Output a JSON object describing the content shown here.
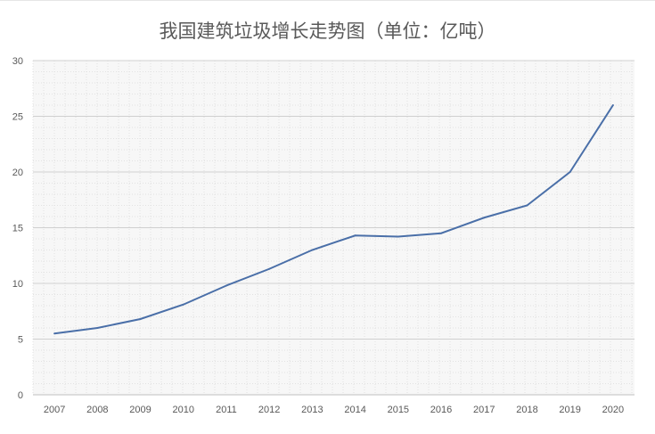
{
  "chart_data": {
    "type": "line",
    "title": "我国建筑垃圾增长走势图（单位：亿吨）",
    "categories": [
      "2007",
      "2008",
      "2009",
      "2010",
      "2011",
      "2012",
      "2013",
      "2014",
      "2015",
      "2016",
      "2017",
      "2018",
      "2019",
      "2020"
    ],
    "values": [
      5.5,
      6.0,
      6.8,
      8.1,
      9.8,
      11.3,
      13.0,
      14.3,
      14.2,
      14.5,
      15.9,
      17.0,
      20.0,
      26.0
    ],
    "ylim": [
      0,
      30
    ],
    "yticks": [
      0,
      5,
      10,
      15,
      20,
      25,
      30
    ],
    "grid": true,
    "line_color": "#4a6fa8",
    "xlabel": "",
    "ylabel": ""
  }
}
